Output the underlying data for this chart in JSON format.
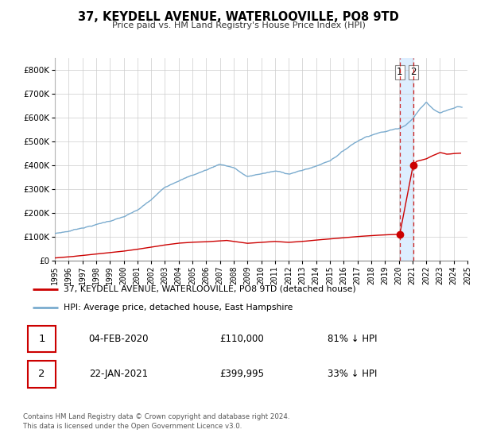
{
  "title": "37, KEYDELL AVENUE, WATERLOOVILLE, PO8 9TD",
  "subtitle": "Price paid vs. HM Land Registry's House Price Index (HPI)",
  "legend_line1": "37, KEYDELL AVENUE, WATERLOOVILLE, PO8 9TD (detached house)",
  "legend_line2": "HPI: Average price, detached house, East Hampshire",
  "sale1_date": "04-FEB-2020",
  "sale1_price": "£110,000",
  "sale1_hpi": "81% ↓ HPI",
  "sale2_date": "22-JAN-2021",
  "sale2_price": "£399,995",
  "sale2_hpi": "33% ↓ HPI",
  "footer_line1": "Contains HM Land Registry data © Crown copyright and database right 2024.",
  "footer_line2": "This data is licensed under the Open Government Licence v3.0.",
  "vline1_x": 2020.08,
  "vline2_x": 2021.05,
  "dot1_x": 2020.08,
  "dot1_y": 110000,
  "dot2_x": 2021.05,
  "dot2_y": 399995,
  "red_color": "#cc0000",
  "blue_color": "#7aabce",
  "shade_color": "#ddeeff",
  "background_color": "#ffffff",
  "grid_color": "#cccccc",
  "ylim": [
    0,
    850000
  ],
  "xlim": [
    1995,
    2025
  ],
  "yticks": [
    0,
    100000,
    200000,
    300000,
    400000,
    500000,
    600000,
    700000,
    800000
  ],
  "xticks": [
    1995,
    1996,
    1997,
    1998,
    1999,
    2000,
    2001,
    2002,
    2003,
    2004,
    2005,
    2006,
    2007,
    2008,
    2009,
    2010,
    2011,
    2012,
    2013,
    2014,
    2015,
    2016,
    2017,
    2018,
    2019,
    2020,
    2021,
    2022,
    2023,
    2024,
    2025
  ],
  "hpi_points_x": [
    1995,
    1996,
    1997,
    1998,
    1999,
    2000,
    2001,
    2002,
    2003,
    2004,
    2005,
    2006,
    2007,
    2008,
    2008.5,
    2009,
    2010,
    2011,
    2012,
    2013,
    2014,
    2015,
    2016,
    2016.5,
    2017,
    2017.5,
    2018,
    2018.5,
    2019,
    2019.5,
    2020.0,
    2020.5,
    2021.0,
    2021.5,
    2022.0,
    2022.3,
    2022.6,
    2023.0,
    2023.3,
    2023.7,
    2024.0,
    2024.3,
    2024.6
  ],
  "hpi_points_y": [
    112000,
    122000,
    138000,
    152000,
    168000,
    185000,
    210000,
    252000,
    305000,
    338000,
    360000,
    382000,
    408000,
    395000,
    375000,
    355000,
    368000,
    378000,
    368000,
    382000,
    400000,
    425000,
    468000,
    490000,
    510000,
    525000,
    538000,
    548000,
    552000,
    560000,
    568000,
    585000,
    610000,
    648000,
    682000,
    665000,
    650000,
    638000,
    645000,
    652000,
    658000,
    665000,
    662000
  ],
  "red_points_x": [
    1995,
    1996,
    1997,
    1998,
    1999,
    2000,
    2001,
    2002,
    2003,
    2004,
    2005,
    2006,
    2007,
    2007.5,
    2008,
    2009,
    2010,
    2011,
    2011.5,
    2012,
    2013,
    2014,
    2015,
    2016,
    2017,
    2018,
    2019,
    2019.5,
    2020.07,
    2020.08,
    2021.04,
    2021.05,
    2021.3,
    2022.0,
    2022.5,
    2023.0,
    2023.5,
    2024.0,
    2024.5
  ],
  "red_points_y": [
    10000,
    14000,
    20000,
    26000,
    32000,
    38000,
    46000,
    55000,
    64000,
    72000,
    76000,
    78000,
    82000,
    84000,
    80000,
    72000,
    76000,
    80000,
    78000,
    76000,
    80000,
    86000,
    91000,
    96000,
    101000,
    105000,
    108000,
    109000,
    110000,
    110000,
    110000,
    399995,
    415000,
    425000,
    440000,
    452000,
    445000,
    448000,
    450000
  ]
}
